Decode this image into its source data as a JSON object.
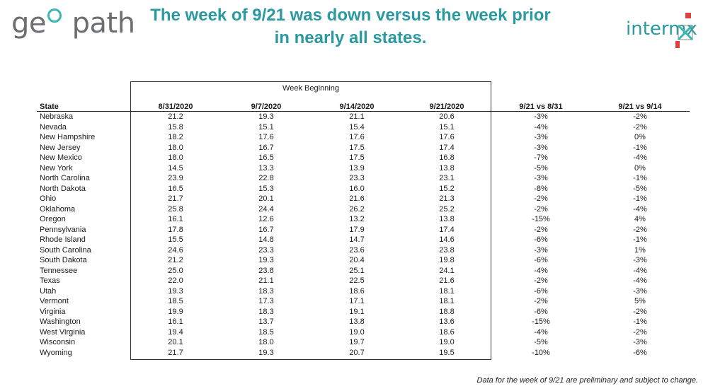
{
  "header": {
    "logo_left": "geopath",
    "title": "The week of 9/21 was down versus the week prior in nearly all states.",
    "logo_right": "intermx"
  },
  "table": {
    "group_label": "Week Beginning",
    "columns": [
      "State",
      "8/31/2020",
      "9/7/2020",
      "9/14/2020",
      "9/21/2020",
      "9/21 vs 8/31",
      "9/21 vs 9/14"
    ],
    "rows": [
      [
        "Nebraska",
        "21.2",
        "19.3",
        "21.1",
        "20.6",
        "-3%",
        "-2%"
      ],
      [
        "Nevada",
        "15.8",
        "15.1",
        "15.4",
        "15.1",
        "-4%",
        "-2%"
      ],
      [
        "New Hampshire",
        "18.2",
        "17.6",
        "17.6",
        "17.6",
        "-3%",
        "0%"
      ],
      [
        "New Jersey",
        "18.0",
        "16.7",
        "17.5",
        "17.4",
        "-3%",
        "-1%"
      ],
      [
        "New Mexico",
        "18.0",
        "16.5",
        "17.5",
        "16.8",
        "-7%",
        "-4%"
      ],
      [
        "New York",
        "14.5",
        "13.3",
        "13.9",
        "13.8",
        "-5%",
        "0%"
      ],
      [
        "North Carolina",
        "23.9",
        "22.8",
        "23.3",
        "23.1",
        "-3%",
        "-1%"
      ],
      [
        "North Dakota",
        "16.5",
        "15.3",
        "16.0",
        "15.2",
        "-8%",
        "-5%"
      ],
      [
        "Ohio",
        "21.7",
        "20.1",
        "21.6",
        "21.3",
        "-2%",
        "-1%"
      ],
      [
        "Oklahoma",
        "25.8",
        "24.4",
        "26.2",
        "25.2",
        "-2%",
        "-4%"
      ],
      [
        "Oregon",
        "16.1",
        "12.6",
        "13.2",
        "13.8",
        "-15%",
        "4%"
      ],
      [
        "Pennsylvania",
        "17.8",
        "16.7",
        "17.9",
        "17.4",
        "-2%",
        "-2%"
      ],
      [
        "Rhode Island",
        "15.5",
        "14.8",
        "14.7",
        "14.6",
        "-6%",
        "-1%"
      ],
      [
        "South Carolina",
        "24.6",
        "23.3",
        "23.6",
        "23.8",
        "-3%",
        "1%"
      ],
      [
        "South Dakota",
        "21.2",
        "19.3",
        "20.4",
        "19.8",
        "-6%",
        "-3%"
      ],
      [
        "Tennessee",
        "25.0",
        "23.8",
        "25.1",
        "24.1",
        "-4%",
        "-4%"
      ],
      [
        "Texas",
        "22.0",
        "21.1",
        "22.5",
        "21.6",
        "-2%",
        "-4%"
      ],
      [
        "Utah",
        "19.3",
        "18.3",
        "18.6",
        "18.1",
        "-6%",
        "-3%"
      ],
      [
        "Vermont",
        "18.5",
        "17.3",
        "17.1",
        "18.1",
        "-2%",
        "5%"
      ],
      [
        "Virginia",
        "19.9",
        "18.3",
        "19.1",
        "18.8",
        "-6%",
        "-2%"
      ],
      [
        "Washington",
        "16.1",
        "13.7",
        "13.8",
        "13.6",
        "-15%",
        "-1%"
      ],
      [
        "West Virginia",
        "19.4",
        "18.5",
        "19.0",
        "18.6",
        "-4%",
        "-2%"
      ],
      [
        "Wisconsin",
        "20.1",
        "18.0",
        "19.7",
        "19.0",
        "-5%",
        "-3%"
      ],
      [
        "Wyoming",
        "21.7",
        "19.3",
        "20.7",
        "19.5",
        "-10%",
        "-6%"
      ]
    ]
  },
  "footnote": "Data for the week of 9/21 are preliminary and subject to change.",
  "colors": {
    "title": "#2a9aa0",
    "accent": "#3ab5b0",
    "logo_gray": "#6d6e71",
    "logo_red": "#e0403c"
  }
}
